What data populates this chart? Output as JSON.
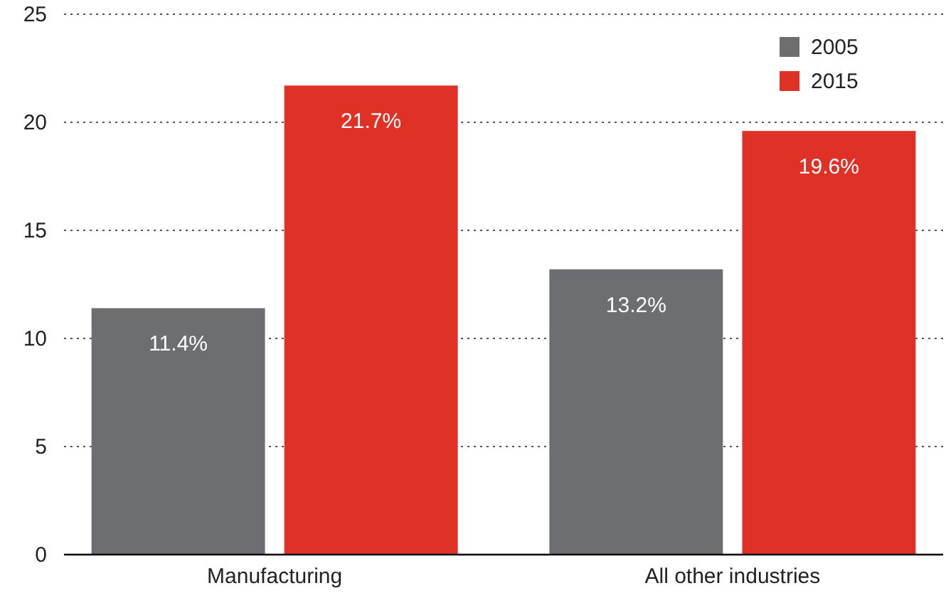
{
  "chart_data": {
    "type": "bar",
    "categories": [
      "Manufacturing",
      "All other industries"
    ],
    "series": [
      {
        "name": "2005",
        "color": "#6d6e71",
        "values": [
          11.4,
          13.2
        ],
        "value_labels": [
          "11.4%",
          "13.2%"
        ]
      },
      {
        "name": "2015",
        "color": "#e03127",
        "values": [
          21.7,
          19.6
        ],
        "value_labels": [
          "21.7%",
          "19.6%"
        ]
      }
    ],
    "ylim": [
      0,
      25
    ],
    "yticks": [
      0,
      5,
      10,
      15,
      20,
      25
    ],
    "grid": "y",
    "legend": "top right"
  }
}
